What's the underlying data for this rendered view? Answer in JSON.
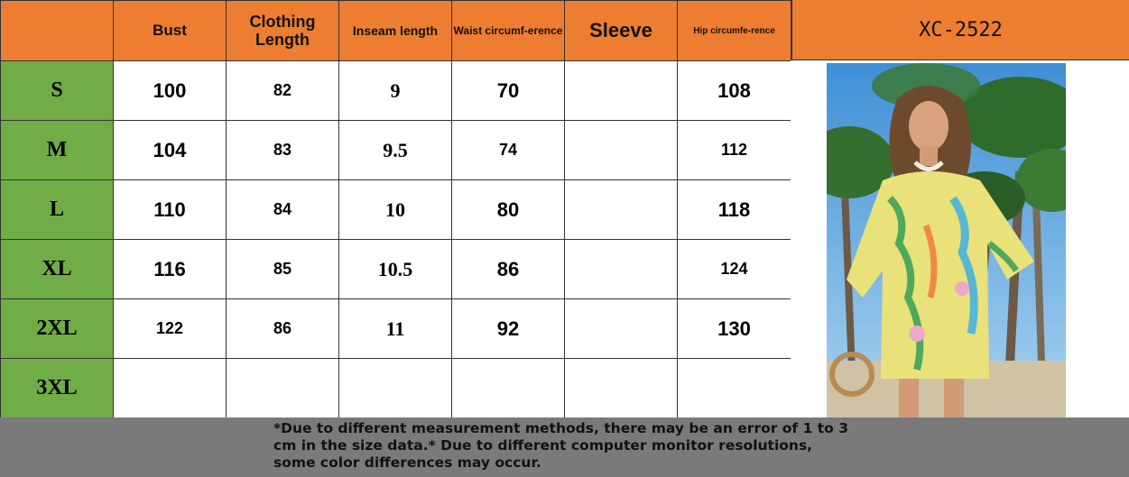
{
  "product_code": "XC-2522",
  "headers": {
    "bust": "Bust",
    "clothing_length": "Clothing Length",
    "inseam_length": "Inseam length",
    "waist": "Waist circumf-erence",
    "sleeve": "Sleeve",
    "hip": "Hip circumfe-rence"
  },
  "rows": [
    {
      "size": "S",
      "bust": "100",
      "length": "82",
      "inseam": "9",
      "waist": "70",
      "sleeve": "",
      "hip": "108"
    },
    {
      "size": "M",
      "bust": "104",
      "length": "83",
      "inseam": "9.5",
      "waist": "74",
      "sleeve": "",
      "hip": "112"
    },
    {
      "size": "L",
      "bust": "110",
      "length": "84",
      "inseam": "10",
      "waist": "80",
      "sleeve": "",
      "hip": "118"
    },
    {
      "size": "XL",
      "bust": "116",
      "length": "85",
      "inseam": "10.5",
      "waist": "86",
      "sleeve": "",
      "hip": "124"
    },
    {
      "size": "2XL",
      "bust": "122",
      "length": "86",
      "inseam": "11",
      "waist": "92",
      "sleeve": "",
      "hip": "130"
    },
    {
      "size": "3XL",
      "bust": "",
      "length": "",
      "inseam": "",
      "waist": "",
      "sleeve": "",
      "hip": ""
    }
  ],
  "note": "*Due to different measurement methods, there may be an error of 1 to 3 cm in the size data.* Due to different computer monitor resolutions, some color differences may occur.",
  "colors": {
    "header": "#ed7d31",
    "size_column": "#70ad47",
    "footer": "#7a7a7a"
  }
}
